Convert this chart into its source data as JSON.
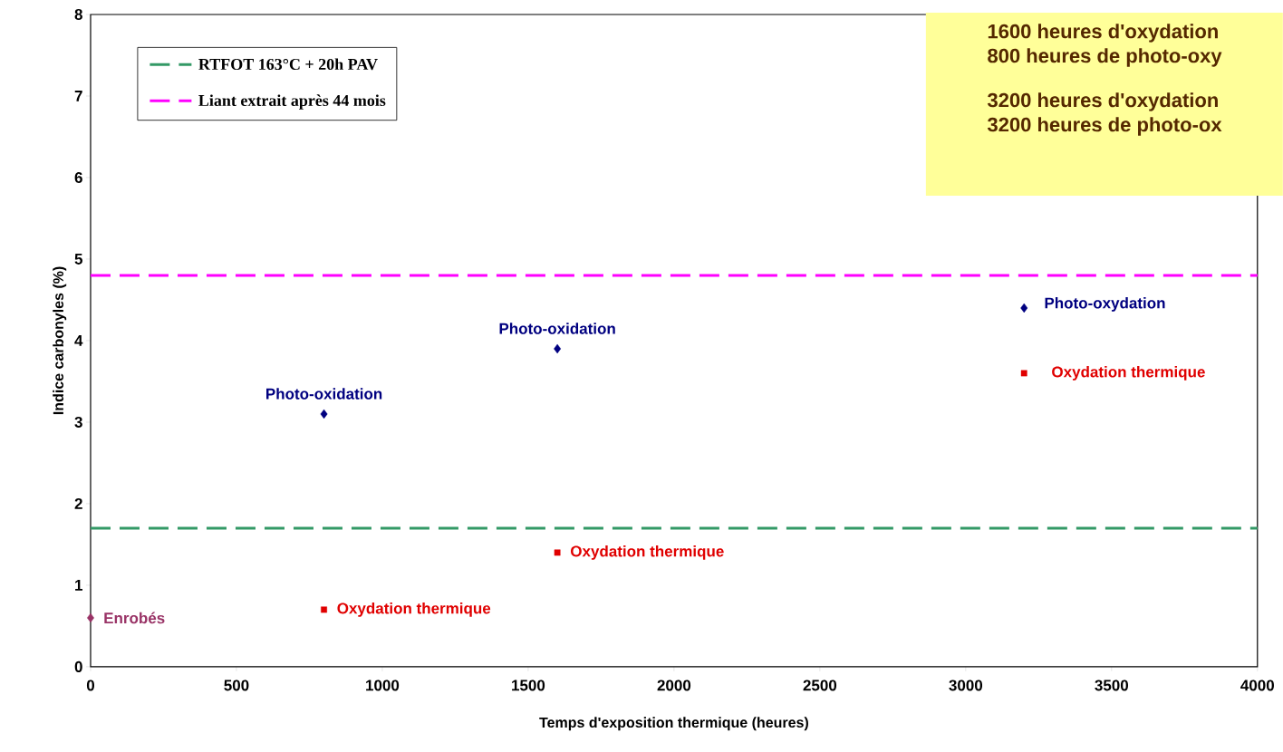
{
  "chart_data": {
    "type": "scatter",
    "xlabel": "Temps d'exposition thermique (heures)",
    "ylabel": "Indice carbonyles (%)",
    "xlim": [
      0,
      4000
    ],
    "xticks": [
      0,
      500,
      1000,
      1500,
      2000,
      2500,
      3000,
      3500,
      4000
    ],
    "ylim": [
      0,
      8
    ],
    "yticks": [
      0,
      1,
      2,
      3,
      4,
      5,
      6,
      7,
      8
    ],
    "series": [
      {
        "color": "#993366",
        "marker": "diamond",
        "x": [
          0
        ],
        "values": [
          0.6
        ]
      },
      {
        "color": "#000080",
        "marker": "diamond",
        "x": [
          800,
          1600,
          3200
        ],
        "values": [
          3.1,
          3.9,
          4.4
        ]
      },
      {
        "color": "#e00000",
        "marker": "square",
        "x": [
          800,
          1600,
          3200
        ],
        "values": [
          0.7,
          1.4,
          3.6
        ]
      }
    ],
    "ref_lines": [
      {
        "axis": "y",
        "value": 1.7,
        "label": "RTFOT 163°C + 20h PAV",
        "color": "#339966",
        "line_style": "dashed"
      },
      {
        "axis": "y",
        "value": 4.8,
        "label": "Liant extrait après 44 mois",
        "color": "#ff00ff",
        "line_style": "dashed"
      }
    ],
    "legend": "top left",
    "annotations": [
      "1600 heures d'oxydation",
      "800 heures de photo-oxy",
      "3200 heures d'oxydation",
      "3200 heures de photo-ox",
      {
        "text": "Enrobés",
        "x": 0,
        "y": 0.6
      },
      {
        "text": "Photo-oxidation",
        "x": 800,
        "y": 3.1
      },
      {
        "text": "Photo-oxidation",
        "x": 1600,
        "y": 3.9
      },
      {
        "text": "Photo-oxydation",
        "x": 3200,
        "y": 4.4
      },
      {
        "text": "Oxydation thermique",
        "x": 800,
        "y": 0.7
      },
      {
        "text": "Oxydation thermique",
        "x": 1600,
        "y": 1.4
      },
      {
        "text": "Oxydation thermique",
        "x": 3200,
        "y": 3.6
      }
    ]
  }
}
